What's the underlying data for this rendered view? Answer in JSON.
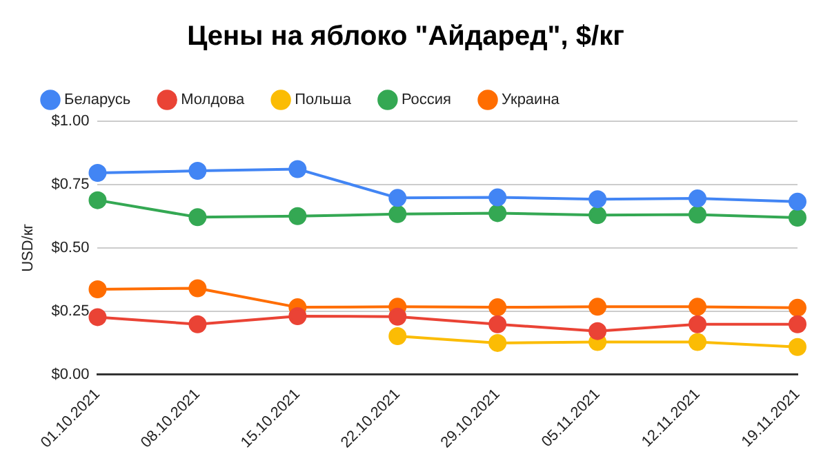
{
  "chart_data": {
    "type": "line",
    "title": "Цены на яблоко \"Айдаред\", $/кг",
    "ylabel": "USD/кг",
    "categories": [
      "01.10.2021",
      "08.10.2021",
      "15.10.2021",
      "22.10.2021",
      "29.10.2021",
      "05.11.2021",
      "12.11.2021",
      "19.11.2021"
    ],
    "series": [
      {
        "name": "Беларусь",
        "color": "#4285f4",
        "values": [
          0.796,
          0.804,
          0.811,
          0.697,
          0.699,
          0.692,
          0.695,
          0.682
        ]
      },
      {
        "name": "Молдова",
        "color": "#ea4335",
        "values": [
          0.226,
          0.198,
          0.23,
          0.228,
          0.198,
          0.171,
          0.198,
          0.198
        ]
      },
      {
        "name": "Польша",
        "color": "#fbbc04",
        "values": [
          null,
          null,
          null,
          0.151,
          0.124,
          0.128,
          0.128,
          0.108
        ]
      },
      {
        "name": "Россия",
        "color": "#34a853",
        "values": [
          0.688,
          0.621,
          0.625,
          0.633,
          0.637,
          0.629,
          0.631,
          0.619
        ]
      },
      {
        "name": "Украина",
        "color": "#ff6d01",
        "values": [
          0.336,
          0.34,
          0.265,
          0.267,
          0.265,
          0.267,
          0.267,
          0.263
        ]
      }
    ],
    "ylim": [
      0,
      1
    ],
    "yticks": [
      {
        "value": 0,
        "label": "$0.00"
      },
      {
        "value": 0.25,
        "label": "$0.25"
      },
      {
        "value": 0.5,
        "label": "$0.50"
      },
      {
        "value": 0.75,
        "label": "$0.75"
      },
      {
        "value": 1,
        "label": "$1.00"
      }
    ],
    "grid": "y",
    "legend": "top",
    "marker": "circle",
    "line_style": "solid"
  }
}
